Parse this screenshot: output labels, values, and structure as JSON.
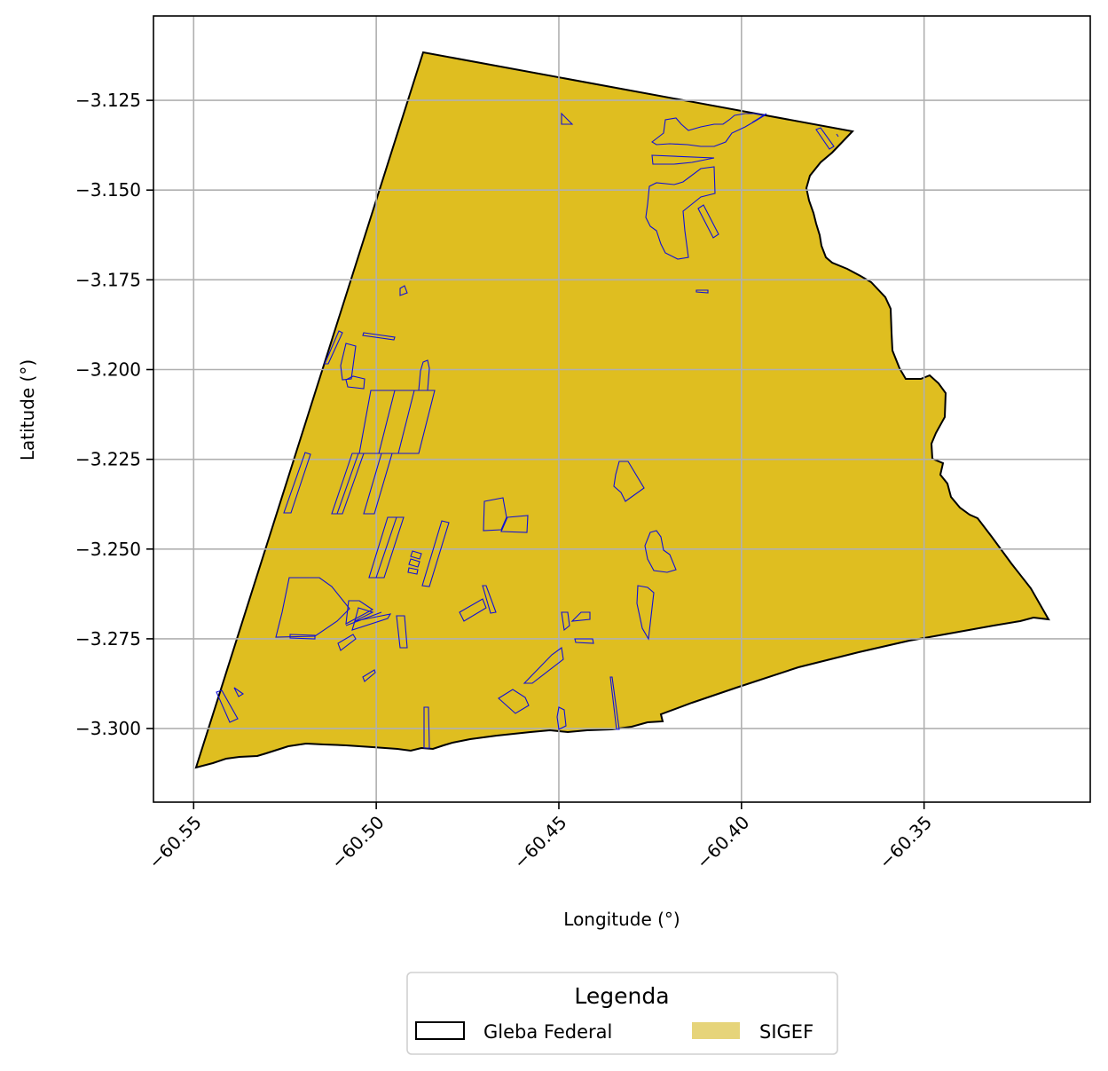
{
  "map": {
    "x_axis": {
      "label": "Longitude (°)",
      "min": -60.561,
      "max": -60.3045,
      "ticks": [
        -60.55,
        -60.5,
        -60.45,
        -60.4,
        -60.35
      ],
      "tick_labels": [
        "−60.55",
        "−60.50",
        "−60.45",
        "−60.40",
        "−60.35"
      ]
    },
    "y_axis": {
      "label": "Latitude (°)",
      "min": -3.3205,
      "max": -3.1015,
      "ticks": [
        -3.125,
        -3.15,
        -3.175,
        -3.2,
        -3.225,
        -3.25,
        -3.275,
        -3.3
      ],
      "tick_labels": [
        "−3.125",
        "−3.150",
        "−3.175",
        "−3.200",
        "−3.225",
        "−3.250",
        "−3.275",
        "−3.300"
      ]
    },
    "grid": true,
    "legend": {
      "title": "Legenda",
      "position": "bottom-center",
      "items": [
        {
          "label": "Gleba Federal",
          "style": "outline",
          "color": "#000000"
        },
        {
          "label": "SIGEF",
          "style": "fill",
          "color": "#e6d47a"
        }
      ]
    },
    "colors": {
      "area_fill": "#dfbe20",
      "boundary": "#000000",
      "parcel_outline": "#1010d8"
    }
  }
}
